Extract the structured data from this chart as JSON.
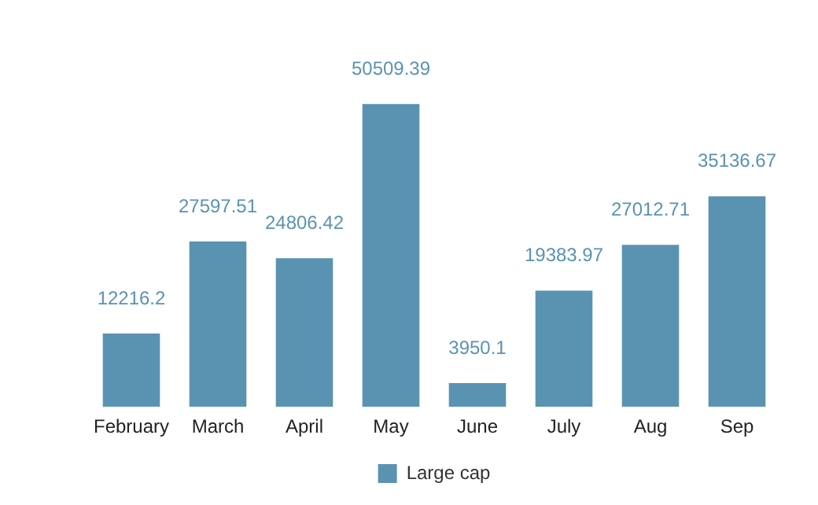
{
  "chart_data": {
    "type": "bar",
    "categories": [
      "February",
      "March",
      "April",
      "May",
      "June",
      "July",
      "Aug",
      "Sep"
    ],
    "series": [
      {
        "name": "Large cap",
        "color": "#5a93b1",
        "values": [
          12216.2,
          27597.51,
          24806.42,
          50509.39,
          3950.1,
          19383.97,
          27012.71,
          35136.67
        ]
      }
    ],
    "data_labels": true,
    "legend": "bottom",
    "grid": false
  }
}
